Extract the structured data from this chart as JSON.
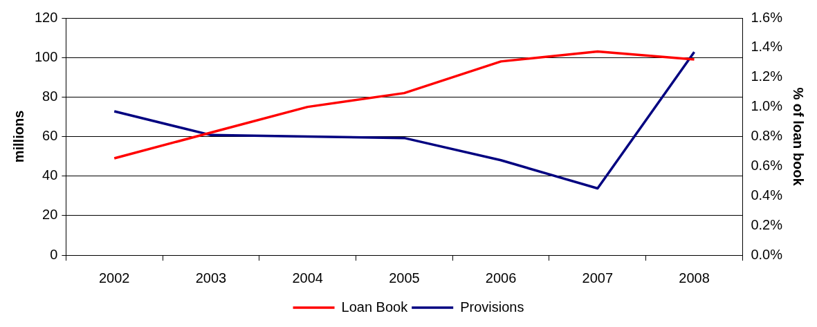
{
  "chart_data": {
    "type": "line",
    "categories": [
      "2002",
      "2003",
      "2004",
      "2005",
      "2006",
      "2007",
      "2008"
    ],
    "series": [
      {
        "name": "Loan Book",
        "color": "#ff0000",
        "values": [
          49,
          62,
          75,
          82,
          98,
          103,
          99
        ]
      },
      {
        "name": "Provisions",
        "color": "#000080",
        "axis": "y2",
        "values": [
          0.97,
          0.81,
          0.8,
          0.79,
          0.64,
          0.45,
          1.37
        ]
      }
    ],
    "ylabel": "millions",
    "y2label": "% of loan book",
    "ylim": [
      0,
      120
    ],
    "yticks": [
      0,
      20,
      40,
      60,
      80,
      100,
      120
    ],
    "y2lim": [
      0,
      1.6
    ],
    "y2ticks": [
      {
        "value": 0,
        "label": "0.0%"
      },
      {
        "value": 0.2,
        "label": "0.2%"
      },
      {
        "value": 0.4,
        "label": "0.4%"
      },
      {
        "value": 0.6,
        "label": "0.6%"
      },
      {
        "value": 0.8,
        "label": "0.8%"
      },
      {
        "value": 1.0,
        "label": "1.0%"
      },
      {
        "value": 1.2,
        "label": "1.2%"
      },
      {
        "value": 1.4,
        "label": "1.4%"
      },
      {
        "value": 1.6,
        "label": "1.6%"
      }
    ],
    "grid": "y",
    "legend": "bottom",
    "marker": "none",
    "line_style": "solid"
  }
}
